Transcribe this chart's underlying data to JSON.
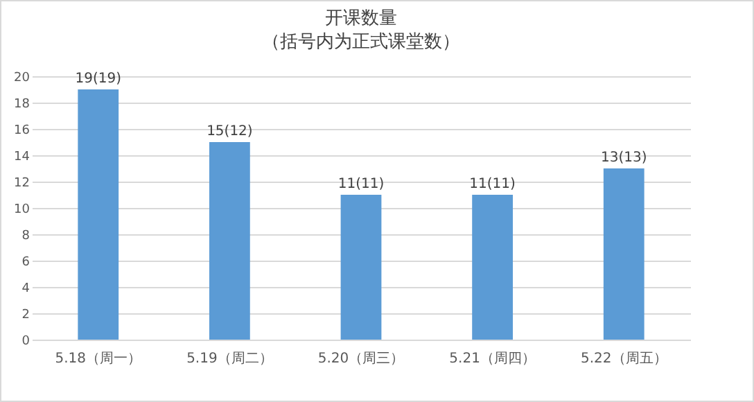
{
  "chart_data": {
    "type": "bar",
    "title": "开课数量",
    "subtitle": "（括号内为正式课堂数）",
    "categories": [
      "5.18（周一）",
      "5.19（周二）",
      "5.20（周三）",
      "5.21（周四）",
      "5.22（周五）"
    ],
    "values": [
      19,
      15,
      11,
      11,
      13
    ],
    "value_labels": [
      "19(19)",
      "15(12)",
      "11(11)",
      "11(11)",
      "13(13)"
    ],
    "color": "#5b9bd5",
    "ylim": [
      0,
      20
    ],
    "yticks": [
      0,
      2,
      4,
      6,
      8,
      10,
      12,
      14,
      16,
      18,
      20
    ],
    "grid": "y"
  }
}
